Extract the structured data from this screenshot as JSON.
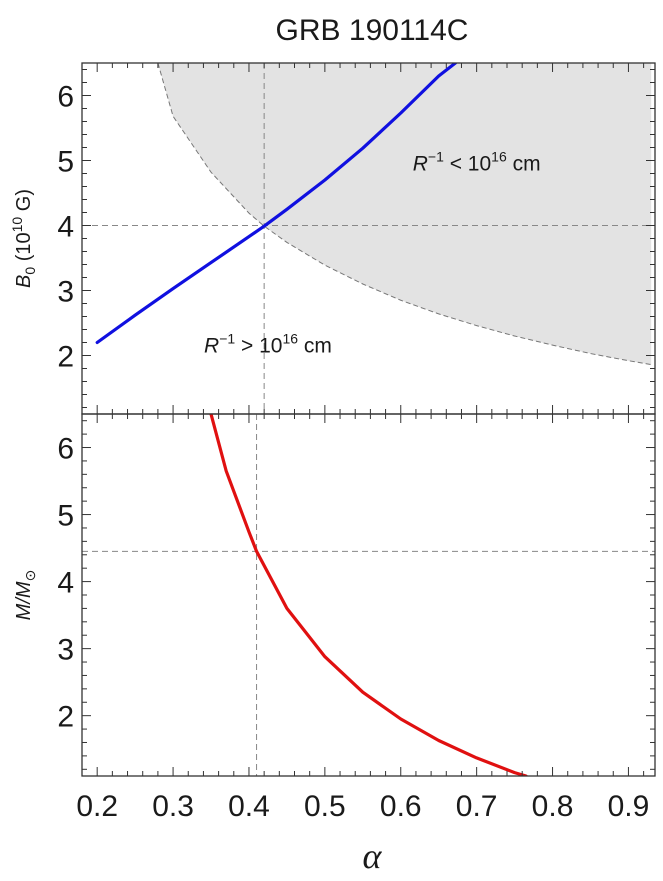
{
  "title": "GRB 190114C",
  "xlabel": "α",
  "chart_data": [
    {
      "type": "line",
      "ylabel_main": "B",
      "ylabel_sub": "0",
      "ylabel_rest": " (10",
      "ylabel_exp": "10",
      "ylabel_unit": " G)",
      "xlim": [
        0.18,
        0.935
      ],
      "ylim": [
        1.1,
        6.5
      ],
      "yticks": [
        "2",
        "3",
        "4",
        "5",
        "6"
      ],
      "ytick_values": [
        2,
        3,
        4,
        5,
        6
      ],
      "series": [
        {
          "color": "#1010e0",
          "x": [
            0.2,
            0.25,
            0.3,
            0.35,
            0.4,
            0.42,
            0.45,
            0.5,
            0.55,
            0.6,
            0.65,
            0.672
          ],
          "y": [
            2.2,
            2.62,
            3.03,
            3.43,
            3.83,
            3.99,
            4.25,
            4.7,
            5.19,
            5.73,
            6.3,
            6.5
          ]
        }
      ],
      "shaded_region": {
        "color": "#e3e3e3",
        "x": [
          0.28,
          0.3,
          0.35,
          0.4,
          0.42,
          0.45,
          0.5,
          0.55,
          0.6,
          0.65,
          0.7,
          0.75,
          0.8,
          0.85,
          0.9,
          0.93
        ],
        "y": [
          6.5,
          5.68,
          4.82,
          4.19,
          3.99,
          3.74,
          3.39,
          3.1,
          2.85,
          2.64,
          2.46,
          2.3,
          2.16,
          2.03,
          1.92,
          1.86
        ]
      },
      "reference_lines": {
        "x": 0.42,
        "y": 4.0
      },
      "annotations": [
        {
          "base": "R",
          "sup": "−1",
          "mid": " < 10",
          "exp": "16",
          "tail": " cm",
          "x": 0.7,
          "y": 4.85
        },
        {
          "base": "R",
          "sup": "−1",
          "mid": " > 10",
          "exp": "16",
          "tail": " cm",
          "x": 0.425,
          "y": 2.05
        }
      ]
    },
    {
      "type": "line",
      "ylabel_main": "M/M",
      "ylabel_sub": "⊙",
      "xlim": [
        0.18,
        0.935
      ],
      "ylim": [
        1.1,
        6.5
      ],
      "yticks": [
        "2",
        "3",
        "4",
        "5",
        "6"
      ],
      "ytick_values": [
        2,
        3,
        4,
        5,
        6
      ],
      "xticks": [
        "0.2",
        "0.3",
        "0.4",
        "0.5",
        "0.6",
        "0.7",
        "0.8",
        "0.9"
      ],
      "xtick_values": [
        0.2,
        0.3,
        0.4,
        0.5,
        0.6,
        0.7,
        0.8,
        0.9
      ],
      "series": [
        {
          "color": "#e01010",
          "x": [
            0.35,
            0.37,
            0.4,
            0.41,
            0.45,
            0.5,
            0.55,
            0.6,
            0.65,
            0.7,
            0.75,
            0.765
          ],
          "y": [
            6.5,
            5.65,
            4.74,
            4.45,
            3.6,
            2.88,
            2.35,
            1.95,
            1.63,
            1.37,
            1.15,
            1.1
          ]
        }
      ],
      "reference_lines": {
        "x": 0.41,
        "y": 4.45
      }
    }
  ]
}
